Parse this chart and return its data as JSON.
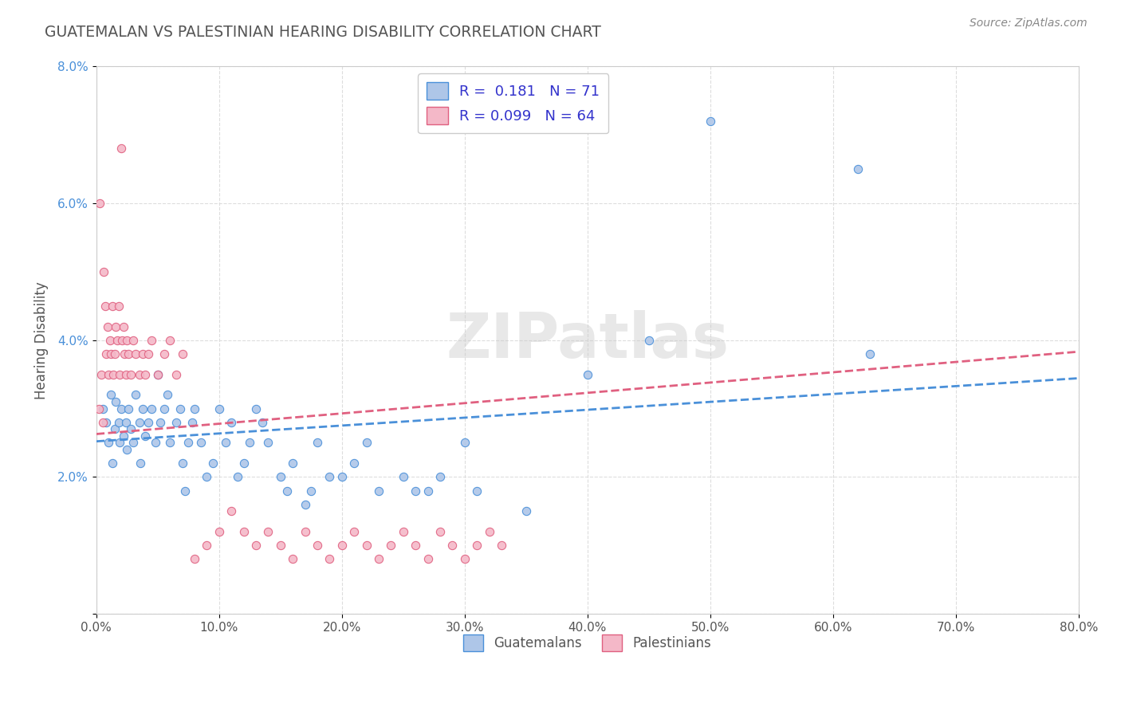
{
  "title": "GUATEMALAN VS PALESTINIAN HEARING DISABILITY CORRELATION CHART",
  "source": "Source: ZipAtlas.com",
  "ylabel": "Hearing Disability",
  "xlim": [
    0.0,
    0.8
  ],
  "ylim": [
    0.0,
    0.08
  ],
  "xticks": [
    0.0,
    0.1,
    0.2,
    0.3,
    0.4,
    0.5,
    0.6,
    0.7,
    0.8
  ],
  "yticks": [
    0.0,
    0.02,
    0.04,
    0.06,
    0.08
  ],
  "xticklabels": [
    "0.0%",
    "10.0%",
    "20.0%",
    "30.0%",
    "40.0%",
    "50.0%",
    "60.0%",
    "70.0%",
    "80.0%"
  ],
  "yticklabels": [
    "",
    "2.0%",
    "4.0%",
    "6.0%",
    "8.0%"
  ],
  "guatemalan_face_color": "#aec6e8",
  "guatemalan_edge_color": "#4a90d9",
  "palestinian_face_color": "#f4b8c8",
  "palestinian_edge_color": "#e06080",
  "guatemalan_trend_color": "#4a90d9",
  "palestinian_trend_color": "#e06080",
  "guatemalan_R": 0.181,
  "guatemalan_N": 71,
  "palestinian_R": 0.099,
  "palestinian_N": 64,
  "watermark": "ZIPatlas",
  "title_color": "#555555",
  "source_color": "#888888",
  "legend_text_color": "#3333cc",
  "tick_color": "#555555",
  "ytick_color": "#4a90d9",
  "grid_color": "#dddddd",
  "background": "#ffffff",
  "guatemalan_x": [
    0.005,
    0.008,
    0.01,
    0.012,
    0.013,
    0.015,
    0.016,
    0.018,
    0.019,
    0.02,
    0.022,
    0.024,
    0.025,
    0.026,
    0.028,
    0.03,
    0.032,
    0.035,
    0.036,
    0.038,
    0.04,
    0.042,
    0.045,
    0.048,
    0.05,
    0.052,
    0.055,
    0.058,
    0.06,
    0.065,
    0.068,
    0.07,
    0.072,
    0.075,
    0.078,
    0.08,
    0.085,
    0.09,
    0.095,
    0.1,
    0.105,
    0.11,
    0.115,
    0.12,
    0.125,
    0.13,
    0.135,
    0.14,
    0.15,
    0.155,
    0.16,
    0.17,
    0.175,
    0.18,
    0.19,
    0.2,
    0.21,
    0.22,
    0.23,
    0.25,
    0.26,
    0.27,
    0.28,
    0.3,
    0.31,
    0.35,
    0.4,
    0.45,
    0.5,
    0.62,
    0.63
  ],
  "guatemalan_y": [
    0.03,
    0.028,
    0.025,
    0.032,
    0.022,
    0.027,
    0.031,
    0.028,
    0.025,
    0.03,
    0.026,
    0.028,
    0.024,
    0.03,
    0.027,
    0.025,
    0.032,
    0.028,
    0.022,
    0.03,
    0.026,
    0.028,
    0.03,
    0.025,
    0.035,
    0.028,
    0.03,
    0.032,
    0.025,
    0.028,
    0.03,
    0.022,
    0.018,
    0.025,
    0.028,
    0.03,
    0.025,
    0.02,
    0.022,
    0.03,
    0.025,
    0.028,
    0.02,
    0.022,
    0.025,
    0.03,
    0.028,
    0.025,
    0.02,
    0.018,
    0.022,
    0.016,
    0.018,
    0.025,
    0.02,
    0.02,
    0.022,
    0.025,
    0.018,
    0.02,
    0.018,
    0.018,
    0.02,
    0.025,
    0.018,
    0.015,
    0.035,
    0.04,
    0.072,
    0.065,
    0.038
  ],
  "palestinian_x": [
    0.002,
    0.003,
    0.004,
    0.005,
    0.006,
    0.007,
    0.008,
    0.009,
    0.01,
    0.011,
    0.012,
    0.013,
    0.014,
    0.015,
    0.016,
    0.017,
    0.018,
    0.019,
    0.02,
    0.021,
    0.022,
    0.023,
    0.024,
    0.025,
    0.026,
    0.028,
    0.03,
    0.032,
    0.035,
    0.038,
    0.04,
    0.042,
    0.045,
    0.05,
    0.055,
    0.06,
    0.065,
    0.07,
    0.08,
    0.09,
    0.1,
    0.11,
    0.12,
    0.13,
    0.14,
    0.15,
    0.16,
    0.17,
    0.18,
    0.19,
    0.2,
    0.21,
    0.22,
    0.23,
    0.24,
    0.25,
    0.26,
    0.27,
    0.28,
    0.29,
    0.3,
    0.31,
    0.32,
    0.33
  ],
  "palestinian_y": [
    0.03,
    0.06,
    0.035,
    0.028,
    0.05,
    0.045,
    0.038,
    0.042,
    0.035,
    0.04,
    0.038,
    0.045,
    0.035,
    0.038,
    0.042,
    0.04,
    0.045,
    0.035,
    0.068,
    0.04,
    0.042,
    0.038,
    0.035,
    0.04,
    0.038,
    0.035,
    0.04,
    0.038,
    0.035,
    0.038,
    0.035,
    0.038,
    0.04,
    0.035,
    0.038,
    0.04,
    0.035,
    0.038,
    0.008,
    0.01,
    0.012,
    0.015,
    0.012,
    0.01,
    0.012,
    0.01,
    0.008,
    0.012,
    0.01,
    0.008,
    0.01,
    0.012,
    0.01,
    0.008,
    0.01,
    0.012,
    0.01,
    0.008,
    0.012,
    0.01,
    0.008,
    0.01,
    0.012,
    0.01
  ]
}
